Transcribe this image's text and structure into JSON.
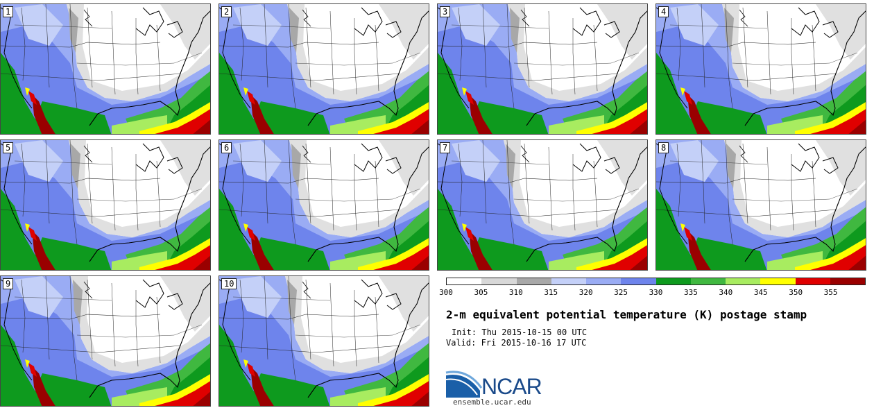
{
  "panels": [
    {
      "label": "1"
    },
    {
      "label": "2"
    },
    {
      "label": "3"
    },
    {
      "label": "4"
    },
    {
      "label": "5"
    },
    {
      "label": "6"
    },
    {
      "label": "7"
    },
    {
      "label": "8"
    },
    {
      "label": "9"
    },
    {
      "label": "10"
    }
  ],
  "colorbar": {
    "colors": [
      "#ffffff",
      "#d8d8d8",
      "#a8a8a8",
      "#c4d0f8",
      "#9aacf4",
      "#6e84ec",
      "#0e9a1e",
      "#40b840",
      "#a8ec60",
      "#ffff00",
      "#e00000",
      "#9a0000"
    ],
    "tick_labels": [
      "300",
      "305",
      "310",
      "315",
      "320",
      "325",
      "330",
      "335",
      "340",
      "345",
      "350",
      "355"
    ]
  },
  "title": "2-m equivalent potential temperature (K) postage stamp",
  "init": "Init: Thu 2015-10-15 00 UTC",
  "valid": "Valid: Fri 2015-10-16 17 UTC",
  "logo_text": "NCAR",
  "url": "ensemble.ucar.edu"
}
